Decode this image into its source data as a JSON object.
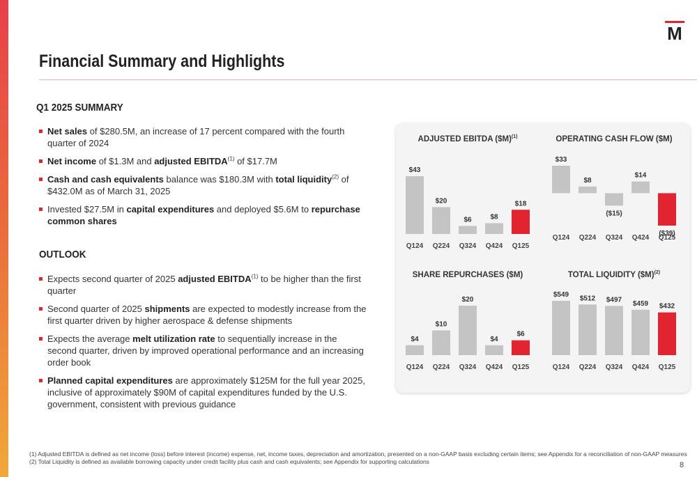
{
  "page": {
    "title": "Financial Summary and Highlights",
    "page_number": "8",
    "brand_color": "#e1242f",
    "logo_letter": "M"
  },
  "summary": {
    "heading": "Q1 2025 SUMMARY",
    "bullets": [
      {
        "segments": [
          {
            "t": "Net sales",
            "b": true
          },
          {
            "t": " of $280.5M, an increase of 17 percent compared with the fourth quarter of 2024"
          }
        ]
      },
      {
        "segments": [
          {
            "t": "Net income",
            "b": true
          },
          {
            "t": " of $1.3M and "
          },
          {
            "t": "adjusted EBITDA",
            "b": true
          },
          {
            "t": "(1)",
            "sup": true
          },
          {
            "t": " of $17.7M"
          }
        ]
      },
      {
        "segments": [
          {
            "t": "Cash and cash equivalents",
            "b": true
          },
          {
            "t": " balance was $180.3M with "
          },
          {
            "t": "total liquidity",
            "b": true
          },
          {
            "t": "(2)",
            "sup": true
          },
          {
            "t": " of $432.0M as of March 31, 2025"
          }
        ]
      },
      {
        "segments": [
          {
            "t": "Invested $27.5M in "
          },
          {
            "t": "capital expenditures",
            "b": true
          },
          {
            "t": " and deployed $5.6M to "
          },
          {
            "t": "repurchase common shares",
            "b": true
          }
        ]
      }
    ]
  },
  "outlook": {
    "heading": "OUTLOOK",
    "bullets": [
      {
        "segments": [
          {
            "t": "Expects second quarter of 2025 "
          },
          {
            "t": "adjusted EBITDA",
            "b": true
          },
          {
            "t": "(1)",
            "sup": true
          },
          {
            "t": " to be higher than the first quarter"
          }
        ]
      },
      {
        "segments": [
          {
            "t": "Second quarter of 2025 "
          },
          {
            "t": "shipments",
            "b": true
          },
          {
            "t": " are expected to modestly increase from the first quarter driven by higher aerospace & defense shipments"
          }
        ]
      },
      {
        "segments": [
          {
            "t": "Expects the average "
          },
          {
            "t": "melt utilization rate",
            "b": true
          },
          {
            "t": " to sequentially increase in the second quarter, driven by improved operational performance and an increasing order book"
          }
        ]
      },
      {
        "segments": [
          {
            "t": "Planned capital expenditures",
            "b": true
          },
          {
            "t": " are approximately $125M for the full year 2025, inclusive of approximately $90M of capital expenditures funded by the U.S. government, consistent with previous guidance"
          }
        ]
      }
    ]
  },
  "chart_data": [
    {
      "type": "bar",
      "title": "ADJUSTED EBITDA ($M)",
      "title_sup": "(1)",
      "categories": [
        "Q124",
        "Q224",
        "Q324",
        "Q424",
        "Q125"
      ],
      "values": [
        43,
        20,
        6,
        8,
        18
      ],
      "labels": [
        "$43",
        "$20",
        "$6",
        "$8",
        "$18"
      ],
      "bar_color": "#c4c4c4",
      "highlight_color": "#e1242f",
      "highlight_index": 4,
      "grid": false
    },
    {
      "type": "bar",
      "title": "OPERATING CASH FLOW ($M)",
      "title_sup": "",
      "categories": [
        "Q124",
        "Q224",
        "Q324",
        "Q424",
        "Q125"
      ],
      "values": [
        33,
        8,
        -15,
        14,
        -39
      ],
      "labels": [
        "$33",
        "$8",
        "($15)",
        "$14",
        "($39)"
      ],
      "bar_color": "#c4c4c4",
      "highlight_color": "#e1242f",
      "highlight_index": 4,
      "grid": false
    },
    {
      "type": "bar",
      "title": "SHARE REPURCHASES ($M)",
      "title_sup": "",
      "categories": [
        "Q124",
        "Q224",
        "Q324",
        "Q424",
        "Q125"
      ],
      "values": [
        4,
        10,
        20,
        4,
        6
      ],
      "labels": [
        "$4",
        "$10",
        "$20",
        "$4",
        "$6"
      ],
      "bar_color": "#c4c4c4",
      "highlight_color": "#e1242f",
      "highlight_index": 4,
      "grid": false
    },
    {
      "type": "bar",
      "title": "TOTAL LIQUIDITY ($M)",
      "title_sup": "(2)",
      "categories": [
        "Q124",
        "Q224",
        "Q324",
        "Q424",
        "Q125"
      ],
      "values": [
        549,
        512,
        497,
        459,
        432
      ],
      "labels": [
        "$549",
        "$512",
        "$497",
        "$459",
        "$432"
      ],
      "bar_color": "#c4c4c4",
      "highlight_color": "#e1242f",
      "highlight_index": 4,
      "grid": false
    }
  ],
  "footnotes": [
    "(1)  Adjusted EBITDA is defined as net income (loss) before interest (income) expense, net, income taxes, depreciation and amortization, presented on a non-GAAP basis excluding certain items; see Appendix for a reconciliation of non-GAAP measures",
    "(2)  Total Liquidity is defined as available borrowing capacity under credit facility plus cash and cash equivalents; see Appendix for supporting calculations"
  ]
}
